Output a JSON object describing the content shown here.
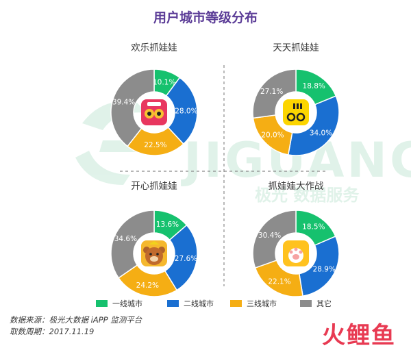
{
  "title": "用户城市等级分布",
  "watermark": {
    "main": "JIGUANG",
    "sub": "极光 数据服务"
  },
  "colors": {
    "一线城市": "#16c16e",
    "二线城市": "#1a6fd1",
    "三线城市": "#f5ae14",
    "其它": "#8c8c8c",
    "title": "#5b3c97"
  },
  "legend": [
    "一线城市",
    "二线城市",
    "三线城市",
    "其它"
  ],
  "chart_data": [
    {
      "type": "pie",
      "title": "欢乐抓娃娃",
      "categories": [
        "一线城市",
        "二线城市",
        "三线城市",
        "其它"
      ],
      "values": [
        10.1,
        28.0,
        22.5,
        39.4
      ],
      "labels": [
        "10.1%",
        "28.0%",
        "22.5%",
        "39.4%"
      ],
      "icon": "claw-game-pink-icon"
    },
    {
      "type": "pie",
      "title": "天天抓娃娃",
      "categories": [
        "一线城市",
        "二线城市",
        "三线城市",
        "其它"
      ],
      "values": [
        18.8,
        34.0,
        20.0,
        27.1
      ],
      "labels": [
        "18.8%",
        "34.0%",
        "20.0%",
        "27.1%"
      ],
      "icon": "claw-game-yellow-icon"
    },
    {
      "type": "pie",
      "title": "开心抓娃娃",
      "categories": [
        "一线城市",
        "二线城市",
        "三线城市",
        "其它"
      ],
      "values": [
        13.6,
        27.6,
        24.2,
        34.6
      ],
      "labels": [
        "13.6%",
        "27.6%",
        "24.2%",
        "34.6%"
      ],
      "icon": "bear-icon"
    },
    {
      "type": "pie",
      "title": "抓娃娃大作战",
      "categories": [
        "一线城市",
        "二线城市",
        "三线城市",
        "其它"
      ],
      "values": [
        18.5,
        28.9,
        22.1,
        30.4
      ],
      "labels": [
        "18.5%",
        "28.9%",
        "22.1%",
        "30.4%"
      ],
      "icon": "cat-paw-icon"
    }
  ],
  "source": {
    "line1": "数据来源：极光大数据 iAPP 监测平台",
    "line2": "取数周期：2017.11.19"
  },
  "footer_brand": "火鲤鱼"
}
